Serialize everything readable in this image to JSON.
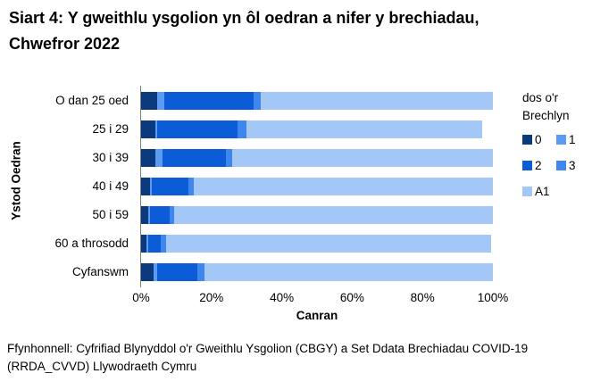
{
  "title": "Siart 4: Y gweithlu ysgolion yn ôl oedran a nifer y brechiadau, Chwefror 2022",
  "source": "Ffynhonnell: Cyfrifiad Blynyddol o'r Gweithlu Ysgolion (CBGY) a Set Ddata Brechiadau COVID-19 (RRDA_CVVD) Llywodraeth Cymru",
  "legend": {
    "title_line1": "dos o'r",
    "title_line2": "Brechlyn"
  },
  "chart_data": {
    "type": "bar",
    "orientation": "horizontal",
    "stacked": true,
    "grid": false,
    "title": "Siart 4: Y gweithlu ysgolion yn ôl oedran a nifer y brechiadau, Chwefror 2022",
    "xlabel": "Canran",
    "ylabel": "Ystod Oedran",
    "xlim": [
      0,
      100
    ],
    "xticks": [
      "0%",
      "20%",
      "40%",
      "60%",
      "80%",
      "100%"
    ],
    "legend_title": "dos o'r Brechlyn",
    "legend_position": "right",
    "categories": [
      "O dan 25 oed",
      "25 i 29",
      "30 i 39",
      "40 i 49",
      "50 i 59",
      "60 a throsodd",
      "Cyfanswm"
    ],
    "series": [
      {
        "name": "0",
        "color": "#0a3a7d",
        "values": [
          4.5,
          4,
          4,
          2.5,
          2,
          1.5,
          3.5
        ]
      },
      {
        "name": "1",
        "color": "#5b9bf2",
        "values": [
          2,
          0.5,
          2,
          0.5,
          0.5,
          0.5,
          1
        ]
      },
      {
        "name": "2",
        "color": "#0b5cd6",
        "values": [
          25.5,
          23,
          18,
          10.5,
          5.5,
          3.5,
          11.5
        ]
      },
      {
        "name": "3",
        "color": "#3f86ef",
        "values": [
          2,
          2.5,
          2,
          1.5,
          1.5,
          1.5,
          2
        ]
      },
      {
        "name": "A1",
        "color": "#a3c7f7",
        "values": [
          66,
          67,
          74,
          85,
          90.5,
          92.5,
          82
        ]
      }
    ]
  }
}
